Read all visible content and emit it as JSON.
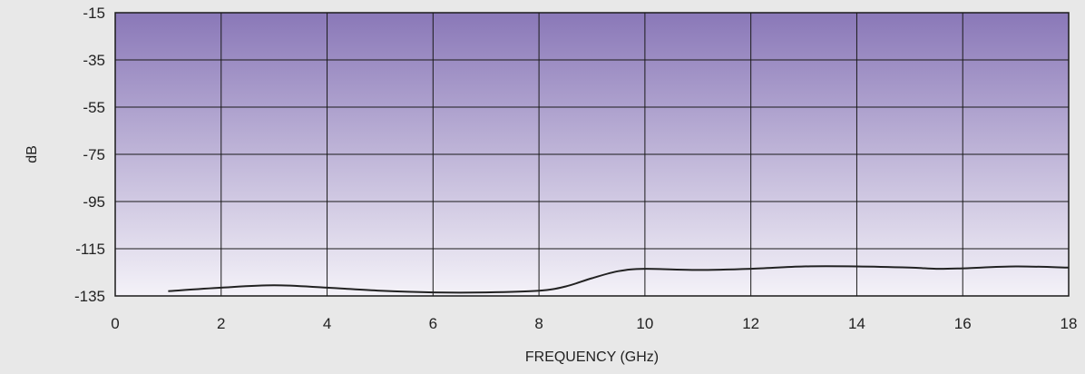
{
  "chart_data": {
    "type": "line",
    "title": "",
    "xlabel": "FREQUENCY (GHz)",
    "ylabel": "dB",
    "xlim": [
      0,
      18
    ],
    "ylim": [
      -135,
      -15
    ],
    "xticks": [
      "0",
      "2",
      "4",
      "6",
      "8",
      "10",
      "12",
      "14",
      "16",
      "18"
    ],
    "yticks": [
      "-15",
      "-35",
      "-55",
      "-75",
      "-95",
      "-115",
      "-135"
    ],
    "grid": true,
    "series": [
      {
        "color": "#222222",
        "x": [
          1,
          2,
          3,
          4,
          5,
          6,
          7,
          8,
          8.5,
          9,
          9.5,
          10,
          11,
          12,
          13,
          14,
          15,
          15.5,
          16,
          17,
          18
        ],
        "y": [
          -133,
          -131.5,
          -130.5,
          -131.5,
          -132.8,
          -133.5,
          -133.5,
          -132.8,
          -131,
          -127.5,
          -124.5,
          -123.5,
          -124,
          -123.5,
          -122.5,
          -122.5,
          -123,
          -123.5,
          -123.3,
          -122.5,
          -123
        ]
      }
    ],
    "colors": {
      "plot_top": "#8a78b8",
      "plot_bottom": "#f4f2f8",
      "grid": "#1a1a1a",
      "background": "#e8e8e8"
    }
  }
}
